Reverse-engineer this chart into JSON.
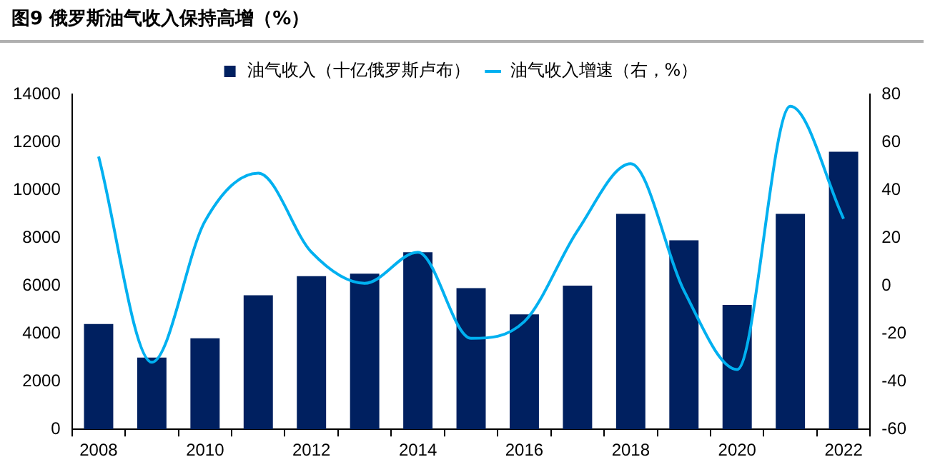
{
  "chart_data": {
    "type": "bar",
    "title": "图9  俄罗斯油气收入保持高增（%）",
    "categories": [
      "2008",
      null,
      "2010",
      null,
      "2012",
      null,
      "2014",
      null,
      "2016",
      null,
      "2018",
      null,
      "2020",
      null,
      "2022"
    ],
    "series": [
      {
        "name": "油气收入（十亿俄罗斯卢布）",
        "color": "#002060",
        "values": [
          4400,
          3000,
          3800,
          5600,
          6400,
          6500,
          7400,
          5900,
          4800,
          6000,
          9000,
          7900,
          5200,
          9000,
          11600
        ]
      },
      {
        "name": "油气收入增速（右，%）",
        "type": "line",
        "axis": "y2",
        "color": "#00b0f0",
        "values": [
          54,
          -32,
          27,
          47,
          14,
          1,
          14,
          -22,
          -15,
          23,
          51,
          -2,
          -35,
          75,
          28
        ]
      }
    ],
    "ylim": [
      0,
      14000
    ],
    "yticks": [
      0,
      2000,
      4000,
      6000,
      8000,
      10000,
      12000,
      14000
    ],
    "y2lim": [
      -60,
      80
    ],
    "y2ticks": [
      -60,
      -40,
      -20,
      0,
      20,
      40,
      60,
      80
    ],
    "grid": false,
    "legend": "top",
    "marker": "none"
  }
}
